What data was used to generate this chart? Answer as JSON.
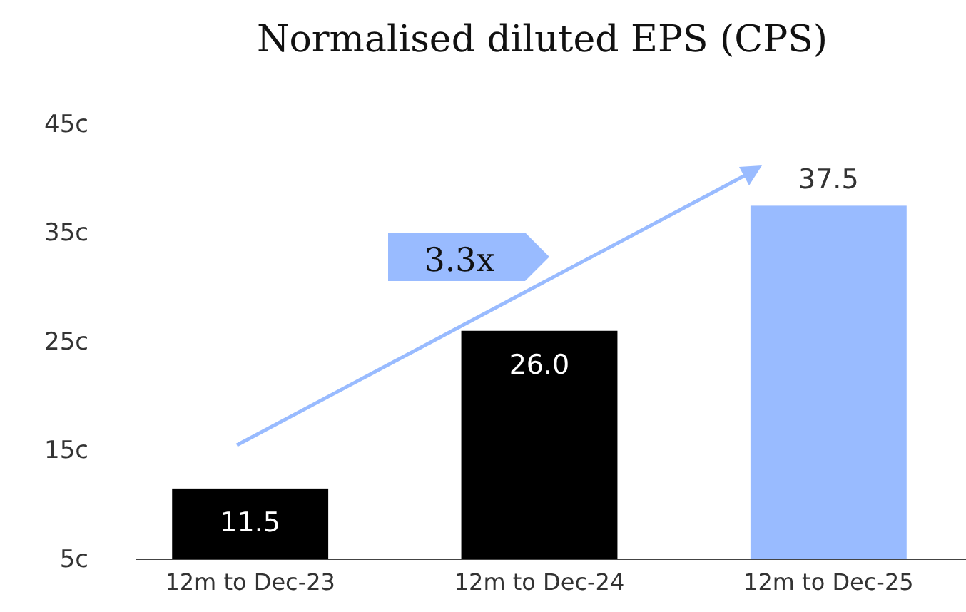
{
  "chart_data": {
    "type": "bar",
    "title": "Normalised diluted EPS (CPS)",
    "categories": [
      "12m to Dec-23",
      "12m to Dec-24",
      "12m to Dec-25"
    ],
    "values": [
      11.5,
      26.0,
      37.5
    ],
    "colors": [
      "#000000",
      "#000000",
      "#99bbff"
    ],
    "value_labels": [
      "11.5",
      "26.0",
      "37.5"
    ],
    "ylim": [
      5,
      45
    ],
    "yticks": [
      {
        "value": 5,
        "label": "5c"
      },
      {
        "value": 15,
        "label": "15c"
      },
      {
        "value": 25,
        "label": "25c"
      },
      {
        "value": 35,
        "label": "35c"
      },
      {
        "value": 45,
        "label": "45c"
      }
    ],
    "annotations": [
      "3.3x"
    ]
  }
}
